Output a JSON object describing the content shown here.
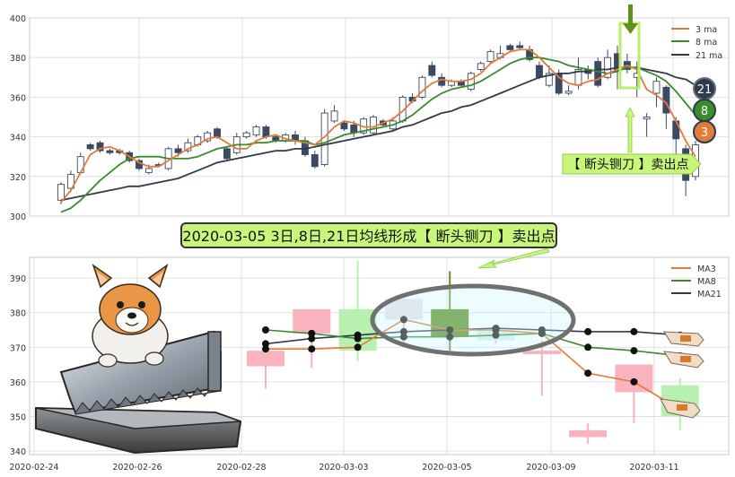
{
  "colors": {
    "ma3": "#e07b39",
    "ma8": "#3a8a2e",
    "ma21": "#2f3a4a",
    "up_top": "#ffffff",
    "down_top": "#3b4a63",
    "up_bottom": "#f9b3bf",
    "down_bottom": "#b8f0b0",
    "grid": "#d9d9d9",
    "callout_fill": "#c8f57a",
    "callout_border": "#7cc04a"
  },
  "top_chart": {
    "type": "candlestick",
    "ylim": [
      300,
      400
    ],
    "yticks": [
      "300",
      "320",
      "340",
      "360",
      "380",
      "400"
    ],
    "legend": [
      "3 ma",
      "8 ma",
      "21 ma"
    ],
    "bubbles": [
      "21",
      "8",
      "3"
    ],
    "callout": "【 断头铡刀 】卖出点",
    "candles": [
      [
        308,
        316,
        306,
        317
      ],
      [
        314,
        321,
        312,
        323
      ],
      [
        322,
        330,
        321,
        332
      ],
      [
        336,
        334,
        333,
        337
      ],
      [
        337,
        333,
        332,
        338
      ],
      [
        333,
        332,
        331,
        334
      ],
      [
        333,
        332,
        331,
        334
      ],
      [
        332,
        328,
        327,
        333
      ],
      [
        328,
        324,
        323,
        329
      ],
      [
        322,
        324,
        321,
        326
      ],
      [
        326,
        326,
        325,
        327
      ],
      [
        324,
        334,
        323,
        335
      ],
      [
        334,
        332,
        330,
        336
      ],
      [
        333,
        337,
        332,
        339
      ],
      [
        336,
        340,
        335,
        341
      ],
      [
        338,
        342,
        337,
        343
      ],
      [
        344,
        340,
        339,
        345
      ],
      [
        334,
        329,
        328,
        335
      ],
      [
        332,
        340,
        331,
        342
      ],
      [
        340,
        342,
        339,
        343
      ],
      [
        341,
        345,
        340,
        346
      ],
      [
        345,
        340,
        339,
        346
      ],
      [
        340,
        338,
        337,
        341
      ],
      [
        338,
        341,
        337,
        342
      ],
      [
        341,
        338,
        336,
        343
      ],
      [
        338,
        331,
        330,
        340
      ],
      [
        331,
        325,
        324,
        333
      ],
      [
        326,
        352,
        325,
        354
      ],
      [
        348,
        353,
        347,
        356
      ],
      [
        347,
        344,
        343,
        348
      ],
      [
        346,
        342,
        340,
        348
      ],
      [
        342,
        349,
        341,
        350
      ],
      [
        342,
        350,
        341,
        351
      ],
      [
        348,
        346,
        345,
        349
      ],
      [
        344,
        348,
        343,
        350
      ],
      [
        348,
        360,
        347,
        361
      ],
      [
        360,
        358,
        357,
        362
      ],
      [
        360,
        370,
        359,
        371
      ],
      [
        376,
        371,
        370,
        378
      ],
      [
        370,
        366,
        365,
        372
      ],
      [
        366,
        368,
        365,
        369
      ],
      [
        368,
        366,
        365,
        369
      ],
      [
        364,
        372,
        363,
        373
      ],
      [
        374,
        377,
        373,
        378
      ],
      [
        378,
        383,
        377,
        384
      ],
      [
        380,
        382,
        379,
        386
      ],
      [
        386,
        384,
        383,
        387
      ],
      [
        386,
        385,
        384,
        388
      ],
      [
        384,
        379,
        378,
        386
      ],
      [
        376,
        370,
        369,
        378
      ],
      [
        366,
        372,
        365,
        376
      ],
      [
        372,
        362,
        361,
        374
      ],
      [
        362,
        363,
        361,
        366
      ],
      [
        366,
        374,
        364,
        380
      ],
      [
        374,
        372,
        369,
        376
      ],
      [
        378,
        366,
        365,
        380
      ],
      [
        370,
        380,
        369,
        384
      ],
      [
        382,
        373,
        364,
        386
      ],
      [
        378,
        374,
        372,
        382
      ],
      [
        370,
        372,
        360,
        378
      ],
      [
        349,
        350,
        340,
        352
      ],
      [
        362,
        368,
        355,
        370
      ],
      [
        365,
        352,
        344,
        366
      ],
      [
        348,
        339,
        331,
        350
      ],
      [
        334,
        318,
        310,
        336
      ],
      [
        320,
        336,
        318,
        338
      ]
    ],
    "ma3": [
      307,
      313,
      322,
      331,
      334,
      335,
      333,
      330,
      327,
      325,
      325,
      328,
      331,
      334,
      336,
      339,
      340,
      337,
      334,
      334,
      338,
      340,
      341,
      339,
      338,
      337,
      336,
      340,
      345,
      348,
      347,
      345,
      345,
      347,
      349,
      353,
      358,
      363,
      367,
      369,
      368,
      368,
      369,
      372,
      377,
      380,
      383,
      384,
      384,
      380,
      375,
      370,
      367,
      366,
      368,
      369,
      372,
      374,
      376,
      374,
      364,
      361,
      357,
      348,
      338,
      330
    ],
    "ma8": [
      302,
      304,
      308,
      313,
      318,
      322,
      326,
      329,
      330,
      330,
      330,
      329,
      329,
      329,
      330,
      332,
      334,
      335,
      336,
      336,
      337,
      337,
      338,
      338,
      338,
      338,
      336,
      337,
      339,
      341,
      342,
      343,
      344,
      345,
      346,
      348,
      351,
      355,
      359,
      362,
      364,
      365,
      366,
      368,
      371,
      374,
      377,
      379,
      380,
      380,
      379,
      378,
      376,
      375,
      374,
      373,
      372,
      373,
      375,
      375,
      373,
      371,
      368,
      363,
      357,
      351
    ],
    "ma21": [
      308,
      309,
      310,
      311,
      312,
      313,
      314,
      315,
      315,
      316,
      317,
      318,
      319,
      321,
      323,
      325,
      327,
      328,
      329,
      330,
      331,
      332,
      333,
      333,
      334,
      334,
      335,
      336,
      337,
      338,
      339,
      340,
      341,
      342,
      343,
      345,
      346,
      348,
      350,
      352,
      353,
      355,
      356,
      358,
      360,
      362,
      364,
      366,
      368,
      370,
      371,
      372,
      372,
      373,
      373,
      374,
      374,
      375,
      375,
      375,
      374,
      373,
      372,
      370,
      369,
      366
    ]
  },
  "banner": "2020-03-05 3日,8日,21日均线形成【 断头铡刀 】卖出点",
  "bottom_chart": {
    "type": "candlestick",
    "ylim": [
      340,
      396
    ],
    "yticks": [
      "340",
      "350",
      "360",
      "370",
      "380",
      "390"
    ],
    "xticks": [
      "2020-02-24",
      "2020-02-26",
      "2020-02-28",
      "2020-03-03",
      "2020-03-05",
      "2020-03-09",
      "2020-03-11"
    ],
    "legend": [
      "MA3",
      "MA8",
      "MA21"
    ],
    "candles": [
      {
        "o": 364.5,
        "h": 369,
        "l": 358,
        "c": 369,
        "up": false,
        "color": "#f9b3bf"
      },
      {
        "o": 374,
        "h": 381,
        "l": 364,
        "c": 381,
        "up": false,
        "color": "#f9b3bf"
      },
      {
        "o": 381,
        "h": 395,
        "l": 366,
        "c": 369,
        "up": true,
        "color": "#b8f0b0"
      },
      {
        "o": 378,
        "h": 384,
        "l": 371,
        "c": 384,
        "up": false,
        "color": "#e8e0e8"
      },
      {
        "o": 373,
        "h": 392,
        "l": 369,
        "c": 381,
        "up": true,
        "color": "#5f8f1e"
      },
      {
        "o": 372,
        "h": 375,
        "l": 371,
        "c": 375,
        "up": false,
        "color": "#d7f0ea"
      },
      {
        "o": 368,
        "h": 372,
        "l": 356,
        "c": 369,
        "up": false,
        "color": "#f9b3bf"
      },
      {
        "o": 344,
        "h": 348,
        "l": 342,
        "c": 346,
        "up": false,
        "color": "#f9b3bf"
      },
      {
        "o": 357,
        "h": 365,
        "l": 348,
        "c": 365,
        "up": false,
        "color": "#f9b3bf"
      },
      {
        "o": 359,
        "h": 361,
        "l": 346,
        "c": 350,
        "up": true,
        "color": "#b8f0b0"
      }
    ],
    "ma3": [
      369.5,
      369.5,
      370,
      378,
      375,
      375,
      374,
      362.5,
      360,
      352
    ],
    "ma8": [
      375,
      374,
      372.5,
      373,
      373,
      373.5,
      374,
      370,
      369,
      367.5
    ],
    "ma21": [
      371,
      372.5,
      373.5,
      374.5,
      375,
      375.5,
      375,
      374.5,
      374.5,
      373.5
    ]
  }
}
